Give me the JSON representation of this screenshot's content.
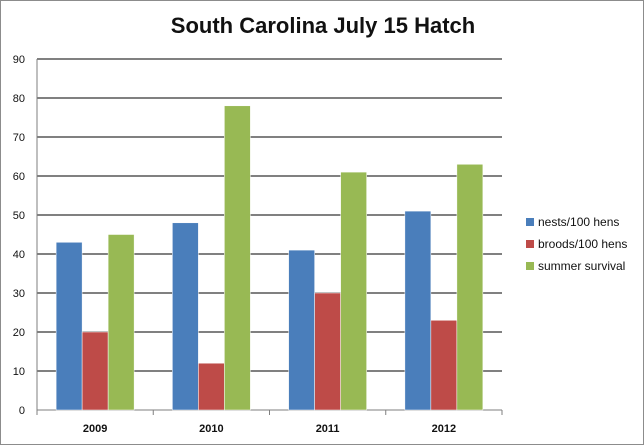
{
  "chart_data": {
    "type": "bar",
    "title": "South Carolina July 15 Hatch",
    "categories": [
      "2009",
      "2010",
      "2011",
      "2012"
    ],
    "series": [
      {
        "name": "nests/100 hens",
        "color": "#4a7ebb",
        "values": [
          43,
          48,
          41,
          51
        ]
      },
      {
        "name": "broods/100 hens",
        "color": "#be4b48",
        "values": [
          20,
          12,
          30,
          23
        ]
      },
      {
        "name": "summer survival",
        "color": "#98b954",
        "values": [
          45,
          78,
          61,
          63
        ]
      }
    ],
    "xlabel": "",
    "ylabel": "",
    "ylim": [
      0,
      90
    ],
    "yticks": [
      "0",
      "10",
      "20",
      "30",
      "40",
      "50",
      "60",
      "70",
      "80",
      "90"
    ],
    "grid": true,
    "legend": "right"
  }
}
